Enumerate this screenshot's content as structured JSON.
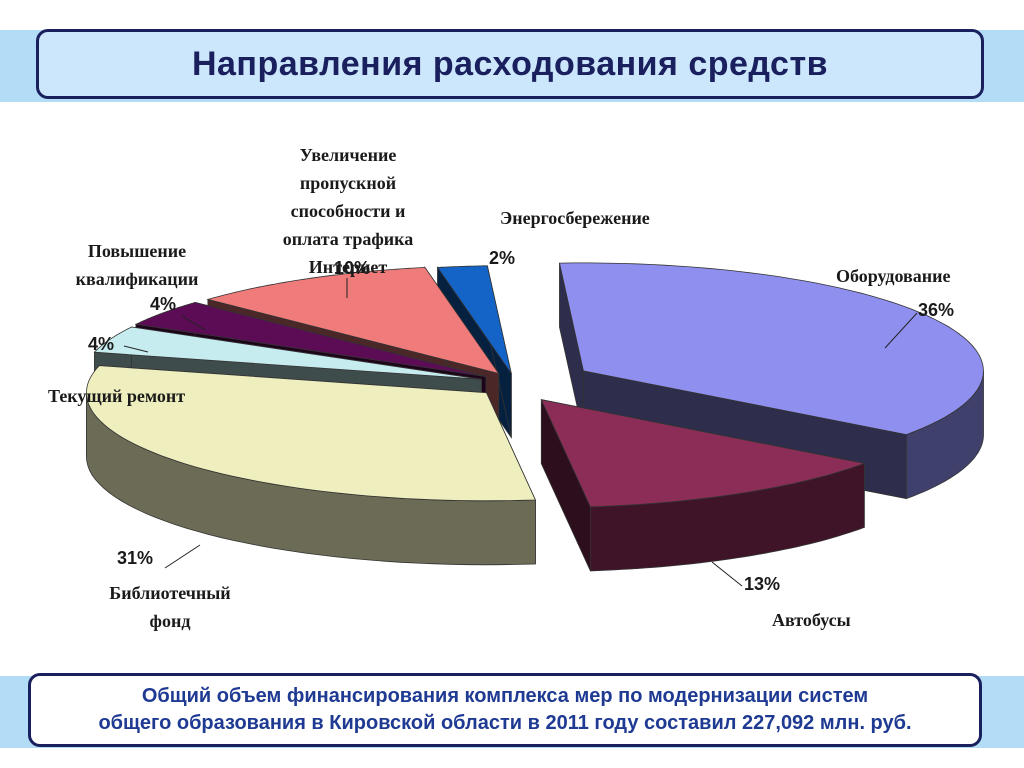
{
  "header": {
    "title": "Направления расходования средств"
  },
  "footer": {
    "line1": "Общий объем финансирования комплекса мер по модернизации систем",
    "line2": "общего образования в Кировской области в 2011 году составил 227,092 млн. руб."
  },
  "chart_data": {
    "type": "pie",
    "title": "",
    "unit": "%",
    "series": [
      {
        "key": "equip",
        "label": "Оборудование",
        "value": 36,
        "value_label": "36%",
        "color": "#8f8fef"
      },
      {
        "key": "bus",
        "label": "Автобусы",
        "value": 13,
        "value_label": "13%",
        "color": "#8c2d58"
      },
      {
        "key": "library",
        "label": "Библиотечный фонд",
        "value": 31,
        "value_label": "31%",
        "color": "#eeeebe"
      },
      {
        "key": "repair",
        "label": "Текущий ремонт",
        "value": 4,
        "value_label": "4%",
        "color": "#c6ecef"
      },
      {
        "key": "qualif",
        "label": "Повышение квалификации",
        "value": 4,
        "value_label": "4%",
        "color": "#5c0c55"
      },
      {
        "key": "internet",
        "label": "Увеличение пропускной способности и оплата трафика Интернет",
        "value": 10,
        "value_label": "10%",
        "color": "#ef7b7b"
      },
      {
        "key": "energy",
        "label": "Энергосбережение",
        "value": 2,
        "value_label": "2%",
        "color": "#1464c8"
      }
    ],
    "legend": "none",
    "style": "3d-exploded"
  }
}
